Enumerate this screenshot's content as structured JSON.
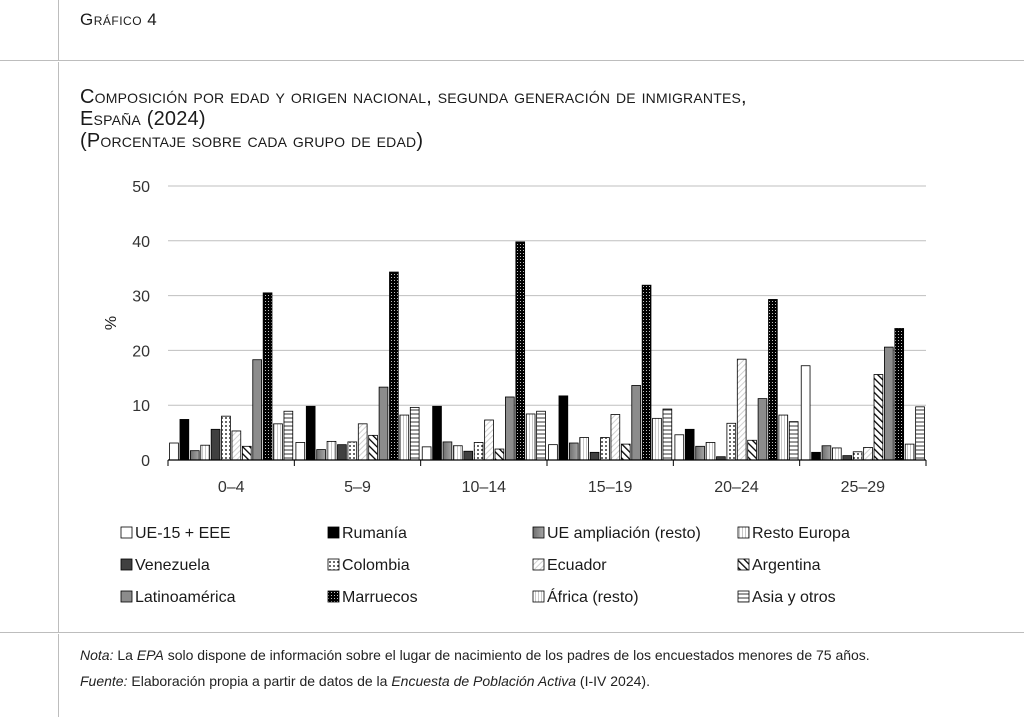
{
  "figure_label": "Gráfico 4",
  "title_line1": "Composición por edad y origen nacional, segunda generación de inmigrantes,",
  "title_line2": "España (2024)",
  "subtitle": "(Porcentaje sobre cada grupo de edad)",
  "note_label": "Nota:",
  "note_pre": "La ",
  "note_epa": "EPA",
  "note_post": " solo dispone de información sobre el lugar de nacimiento de los padres de los encuestados menores de 75 años.",
  "source_label": "Fuente:",
  "source_pre": "Elaboración propia a partir de datos de la ",
  "source_title": "Encuesta de Población Activa",
  "source_post": " (I-IV 2024).",
  "chart_data": {
    "type": "bar",
    "ylabel": "%",
    "xlabel": "",
    "ylim": [
      0,
      50
    ],
    "yticks": [
      "0",
      "10",
      "20",
      "30",
      "40",
      "50"
    ],
    "grid": true,
    "legend_position": "bottom",
    "categories": [
      "0–4",
      "5–9",
      "10–14",
      "15–19",
      "20–24",
      "25–29"
    ],
    "series": [
      {
        "name": "UE-15 + EEE",
        "values": [
          3.1,
          3.2,
          2.4,
          2.8,
          4.6,
          17.2
        ]
      },
      {
        "name": "Rumanía",
        "values": [
          7.4,
          9.8,
          9.8,
          11.7,
          5.6,
          1.4
        ]
      },
      {
        "name": "UE ampliación (resto)",
        "values": [
          1.7,
          1.9,
          3.3,
          3.1,
          2.5,
          2.6
        ]
      },
      {
        "name": "Resto Europa",
        "values": [
          2.7,
          3.4,
          2.6,
          4.1,
          3.2,
          2.2
        ]
      },
      {
        "name": "Venezuela",
        "values": [
          5.6,
          2.8,
          1.6,
          1.4,
          0.6,
          0.8
        ]
      },
      {
        "name": "Colombia",
        "values": [
          8.0,
          3.3,
          3.2,
          4.1,
          6.7,
          1.5
        ]
      },
      {
        "name": "Ecuador",
        "values": [
          5.3,
          6.6,
          7.3,
          8.3,
          18.4,
          2.3
        ]
      },
      {
        "name": "Argentina",
        "values": [
          2.5,
          4.5,
          2.0,
          2.9,
          3.6,
          15.6
        ]
      },
      {
        "name": "Latinoamérica",
        "values": [
          18.3,
          13.3,
          11.5,
          13.6,
          11.2,
          20.6
        ]
      },
      {
        "name": "Marruecos",
        "values": [
          30.5,
          34.3,
          39.8,
          31.9,
          29.3,
          24.0
        ]
      },
      {
        "name": "África (resto)",
        "values": [
          6.6,
          8.2,
          8.4,
          7.6,
          8.2,
          2.9
        ]
      },
      {
        "name": "Asia y otros",
        "values": [
          8.9,
          9.6,
          8.9,
          9.3,
          7.0,
          9.7
        ]
      }
    ],
    "colors": {
      "axis": "#000000",
      "grid": "#bfbfbf",
      "dark": "#000000",
      "mid_gray": "#8c8c8c",
      "dark_gray": "#404040"
    }
  }
}
